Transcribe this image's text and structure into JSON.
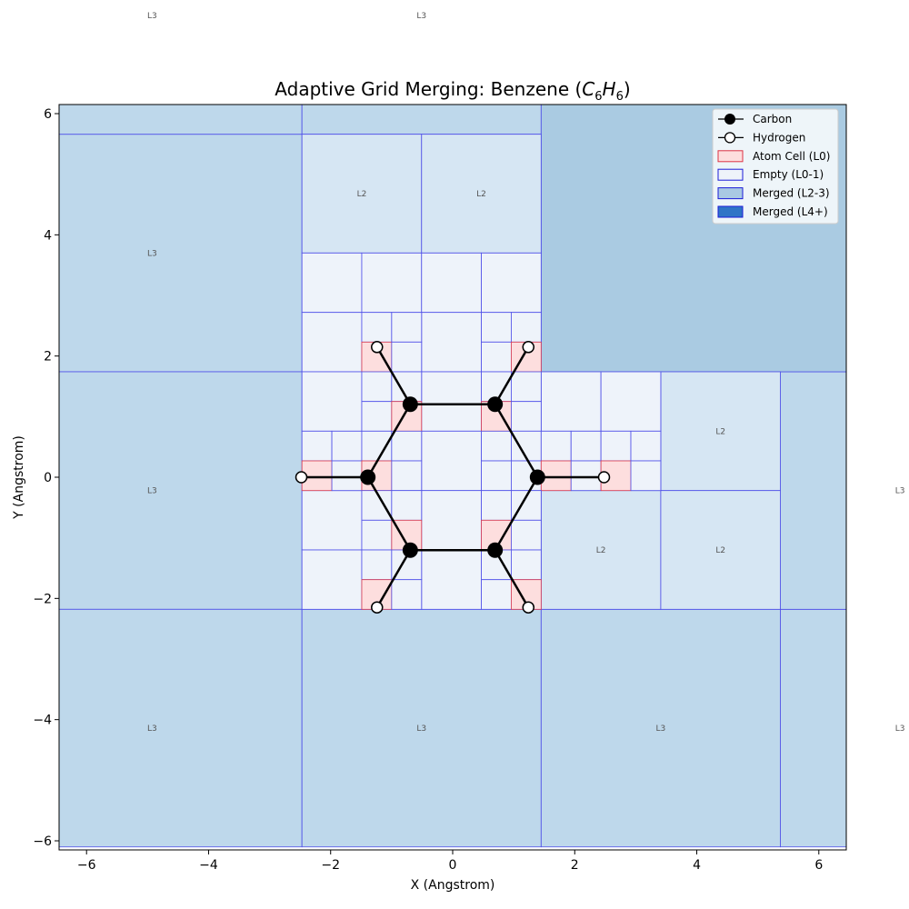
{
  "chart_data": {
    "type": "scatter",
    "title_main": "Adaptive Grid Merging: Benzene (",
    "title_formula": {
      "c": "C",
      "c_sub": "6",
      "h": "H",
      "h_sub": "6"
    },
    "title_close": ")",
    "xlabel": "X (Angstrom)",
    "ylabel": "Y (Angstrom)",
    "xlim": [
      -6.45,
      6.45
    ],
    "ylim": [
      -6.15,
      6.15
    ],
    "xticks": [
      -6,
      -4,
      -2,
      0,
      2,
      4,
      6
    ],
    "yticks": [
      -6,
      -4,
      -2,
      0,
      2,
      4,
      6
    ],
    "xtick_labels": [
      "−6",
      "−4",
      "−2",
      "0",
      "2",
      "4",
      "6"
    ],
    "ytick_labels": [
      "−6",
      "−4",
      "−2",
      "0",
      "2",
      "4",
      "6"
    ],
    "grid": false,
    "legend_position": "top-right",
    "colors": {
      "carbon": "#000000",
      "hydrogen": "#ffffff",
      "bond": "#000000",
      "atom_fill": "#fddede",
      "atom_edge": "#dd3344",
      "empty_fill": "#eef3fa",
      "merged_fill": "#bed8eb",
      "merged_l4_fill": "#aacbe2",
      "cell_edge": "#4a4ae8"
    },
    "legend": [
      {
        "label": "Carbon",
        "kind": "carbon"
      },
      {
        "label": "Hydrogen",
        "kind": "hydrogen"
      },
      {
        "label": "Atom Cell (L0)",
        "kind": "atom"
      },
      {
        "label": "Empty (L0-1)",
        "kind": "empty"
      },
      {
        "label": "Merged (L2-3)",
        "kind": "merged"
      },
      {
        "label": "Merged (L4+)",
        "kind": "merged_l4"
      }
    ],
    "carbon": [
      {
        "x": 1.39,
        "y": 0.0
      },
      {
        "x": 0.695,
        "y": 1.204
      },
      {
        "x": -0.695,
        "y": 1.204
      },
      {
        "x": -1.39,
        "y": 0.0
      },
      {
        "x": -0.695,
        "y": -1.204
      },
      {
        "x": 0.695,
        "y": -1.204
      }
    ],
    "hydrogen": [
      {
        "x": 2.48,
        "y": 0.0
      },
      {
        "x": 1.24,
        "y": 2.148
      },
      {
        "x": -1.24,
        "y": 2.148
      },
      {
        "x": -2.48,
        "y": 0.0
      },
      {
        "x": -1.24,
        "y": -2.148
      },
      {
        "x": 1.24,
        "y": -2.148
      }
    ],
    "cells": [
      {
        "x0": -7.38,
        "x1": -2.47,
        "y0": 1.74,
        "y1": 5.66,
        "kind": "merged",
        "label": "L3"
      },
      {
        "x0": -7.38,
        "x1": -2.47,
        "y0": -2.18,
        "y1": 1.74,
        "kind": "merged",
        "label": "L3"
      },
      {
        "x0": -7.38,
        "x1": -2.47,
        "y0": -6.1,
        "y1": -2.18,
        "kind": "merged",
        "label": "L3"
      },
      {
        "x0": -2.47,
        "x1": 1.45,
        "y0": -6.1,
        "y1": -2.18,
        "kind": "merged",
        "label": "L3"
      },
      {
        "x0": 1.45,
        "x1": 5.37,
        "y0": -6.1,
        "y1": -2.18,
        "kind": "merged",
        "label": "L3"
      },
      {
        "x0": 5.37,
        "x1": 9.29,
        "y0": -6.1,
        "y1": -2.18,
        "kind": "merged",
        "label": "L3"
      },
      {
        "x0": 5.37,
        "x1": 9.29,
        "y0": -2.18,
        "y1": 1.74,
        "kind": "merged",
        "label": "L3"
      },
      {
        "x0": -7.38,
        "x1": -2.47,
        "y0": 5.66,
        "y1": 9.58,
        "kind": "merged",
        "label": "L3"
      },
      {
        "x0": -2.47,
        "x1": 1.45,
        "y0": 5.66,
        "y1": 9.58,
        "kind": "merged",
        "label": "L3"
      },
      {
        "x0": 1.45,
        "x1": 9.29,
        "y0": 1.74,
        "y1": 9.58,
        "kind": "merged_l4",
        "label": ""
      },
      {
        "x0": -2.47,
        "x1": -0.51,
        "y0": 3.7,
        "y1": 5.66,
        "kind": "empty2",
        "label": "L2"
      },
      {
        "x0": -0.51,
        "x1": 1.45,
        "y0": 3.7,
        "y1": 5.66,
        "kind": "empty2",
        "label": "L2"
      },
      {
        "x0": 3.41,
        "x1": 5.37,
        "y0": -0.22,
        "y1": 1.74,
        "kind": "empty2",
        "label": "L2"
      },
      {
        "x0": 1.45,
        "x1": 3.41,
        "y0": -2.18,
        "y1": -0.22,
        "kind": "empty2",
        "label": "L2"
      },
      {
        "x0": 3.41,
        "x1": 5.37,
        "y0": -2.18,
        "y1": -0.22,
        "kind": "empty2",
        "label": "L2"
      },
      {
        "x0": -2.47,
        "x1": -1.49,
        "y0": 2.72,
        "y1": 3.7,
        "kind": "empty",
        "label": ""
      },
      {
        "x0": -1.49,
        "x1": -0.51,
        "y0": 2.72,
        "y1": 3.7,
        "kind": "empty",
        "label": ""
      },
      {
        "x0": -0.51,
        "x1": 0.47,
        "y0": 2.72,
        "y1": 3.7,
        "kind": "empty",
        "label": ""
      },
      {
        "x0": 0.47,
        "x1": 1.45,
        "y0": 2.72,
        "y1": 3.7,
        "kind": "empty",
        "label": ""
      },
      {
        "x0": -2.47,
        "x1": -1.49,
        "y0": 1.74,
        "y1": 2.72,
        "kind": "empty",
        "label": ""
      },
      {
        "x0": -0.51,
        "x1": 0.47,
        "y0": 1.74,
        "y1": 2.72,
        "kind": "empty",
        "label": ""
      },
      {
        "x0": -2.47,
        "x1": -1.49,
        "y0": 0.76,
        "y1": 1.74,
        "kind": "empty",
        "label": ""
      },
      {
        "x0": -0.51,
        "x1": 0.47,
        "y0": 0.76,
        "y1": 1.74,
        "kind": "empty",
        "label": ""
      },
      {
        "x0": -0.51,
        "x1": 0.47,
        "y0": -0.22,
        "y1": 0.76,
        "kind": "empty",
        "label": ""
      },
      {
        "x0": -0.51,
        "x1": 0.47,
        "y0": -1.2,
        "y1": -0.22,
        "kind": "empty",
        "label": ""
      },
      {
        "x0": -2.47,
        "x1": -1.49,
        "y0": -1.2,
        "y1": -0.22,
        "kind": "empty",
        "label": ""
      },
      {
        "x0": -2.47,
        "x1": -1.49,
        "y0": -2.18,
        "y1": -1.2,
        "kind": "empty",
        "label": ""
      },
      {
        "x0": -0.51,
        "x1": 0.47,
        "y0": -2.18,
        "y1": -1.2,
        "kind": "empty",
        "label": ""
      },
      {
        "x0": 1.45,
        "x1": 2.43,
        "y0": 0.76,
        "y1": 1.74,
        "kind": "empty",
        "label": ""
      },
      {
        "x0": 2.43,
        "x1": 3.41,
        "y0": 0.76,
        "y1": 1.74,
        "kind": "empty",
        "label": ""
      },
      {
        "x0": -1.49,
        "x1": -1.0,
        "y0": 2.23,
        "y1": 2.72,
        "kind": "empty",
        "label": ""
      },
      {
        "x0": -1.0,
        "x1": -0.51,
        "y0": 2.23,
        "y1": 2.72,
        "kind": "empty",
        "label": ""
      },
      {
        "x0": -1.49,
        "x1": -1.0,
        "y0": 1.74,
        "y1": 2.23,
        "kind": "atom",
        "label": ""
      },
      {
        "x0": -1.0,
        "x1": -0.51,
        "y0": 1.74,
        "y1": 2.23,
        "kind": "empty",
        "label": ""
      },
      {
        "x0": 0.47,
        "x1": 0.96,
        "y0": 2.23,
        "y1": 2.72,
        "kind": "empty",
        "label": ""
      },
      {
        "x0": 0.96,
        "x1": 1.45,
        "y0": 2.23,
        "y1": 2.72,
        "kind": "empty",
        "label": ""
      },
      {
        "x0": 0.47,
        "x1": 0.96,
        "y0": 1.74,
        "y1": 2.23,
        "kind": "empty",
        "label": ""
      },
      {
        "x0": 0.96,
        "x1": 1.45,
        "y0": 1.74,
        "y1": 2.23,
        "kind": "atom",
        "label": ""
      },
      {
        "x0": -1.49,
        "x1": -1.0,
        "y0": 1.25,
        "y1": 1.74,
        "kind": "empty",
        "label": ""
      },
      {
        "x0": -1.0,
        "x1": -0.51,
        "y0": 1.25,
        "y1": 1.74,
        "kind": "empty",
        "label": ""
      },
      {
        "x0": -1.49,
        "x1": -1.0,
        "y0": 0.76,
        "y1": 1.25,
        "kind": "empty",
        "label": ""
      },
      {
        "x0": -1.0,
        "x1": -0.51,
        "y0": 0.76,
        "y1": 1.25,
        "kind": "atom",
        "label": ""
      },
      {
        "x0": 0.47,
        "x1": 0.96,
        "y0": 1.25,
        "y1": 1.74,
        "kind": "empty",
        "label": ""
      },
      {
        "x0": 0.96,
        "x1": 1.45,
        "y0": 1.25,
        "y1": 1.74,
        "kind": "empty",
        "label": ""
      },
      {
        "x0": 0.47,
        "x1": 0.96,
        "y0": 0.76,
        "y1": 1.25,
        "kind": "atom",
        "label": ""
      },
      {
        "x0": 0.96,
        "x1": 1.45,
        "y0": 0.76,
        "y1": 1.25,
        "kind": "empty",
        "label": ""
      },
      {
        "x0": -2.47,
        "x1": -1.98,
        "y0": 0.27,
        "y1": 0.76,
        "kind": "empty",
        "label": ""
      },
      {
        "x0": -1.98,
        "x1": -1.49,
        "y0": 0.27,
        "y1": 0.76,
        "kind": "empty",
        "label": ""
      },
      {
        "x0": -2.47,
        "x1": -1.98,
        "y0": -0.22,
        "y1": 0.27,
        "kind": "atom",
        "label": ""
      },
      {
        "x0": -1.98,
        "x1": -1.49,
        "y0": -0.22,
        "y1": 0.27,
        "kind": "empty",
        "label": ""
      },
      {
        "x0": -1.49,
        "x1": -1.0,
        "y0": 0.27,
        "y1": 0.76,
        "kind": "empty",
        "label": ""
      },
      {
        "x0": -1.0,
        "x1": -0.51,
        "y0": 0.27,
        "y1": 0.76,
        "kind": "empty",
        "label": ""
      },
      {
        "x0": -1.49,
        "x1": -1.0,
        "y0": -0.22,
        "y1": 0.27,
        "kind": "atom",
        "label": ""
      },
      {
        "x0": -1.0,
        "x1": -0.51,
        "y0": -0.22,
        "y1": 0.27,
        "kind": "empty",
        "label": ""
      },
      {
        "x0": 0.47,
        "x1": 0.96,
        "y0": 0.27,
        "y1": 0.76,
        "kind": "empty",
        "label": ""
      },
      {
        "x0": 0.96,
        "x1": 1.45,
        "y0": 0.27,
        "y1": 0.76,
        "kind": "empty",
        "label": ""
      },
      {
        "x0": 0.47,
        "x1": 0.96,
        "y0": -0.22,
        "y1": 0.27,
        "kind": "empty",
        "label": ""
      },
      {
        "x0": 0.96,
        "x1": 1.45,
        "y0": -0.22,
        "y1": 0.27,
        "kind": "empty",
        "label": ""
      },
      {
        "x0": 1.45,
        "x1": 1.94,
        "y0": 0.27,
        "y1": 0.76,
        "kind": "empty",
        "label": ""
      },
      {
        "x0": 1.94,
        "x1": 2.43,
        "y0": 0.27,
        "y1": 0.76,
        "kind": "empty",
        "label": ""
      },
      {
        "x0": 1.45,
        "x1": 1.94,
        "y0": -0.22,
        "y1": 0.27,
        "kind": "atom",
        "label": ""
      },
      {
        "x0": 1.94,
        "x1": 2.43,
        "y0": -0.22,
        "y1": 0.27,
        "kind": "empty",
        "label": ""
      },
      {
        "x0": 2.43,
        "x1": 2.92,
        "y0": 0.27,
        "y1": 0.76,
        "kind": "empty",
        "label": ""
      },
      {
        "x0": 2.92,
        "x1": 3.41,
        "y0": 0.27,
        "y1": 0.76,
        "kind": "empty",
        "label": ""
      },
      {
        "x0": 2.43,
        "x1": 2.92,
        "y0": -0.22,
        "y1": 0.27,
        "kind": "atom",
        "label": ""
      },
      {
        "x0": 2.92,
        "x1": 3.41,
        "y0": -0.22,
        "y1": 0.27,
        "kind": "empty",
        "label": ""
      },
      {
        "x0": -1.49,
        "x1": -1.0,
        "y0": -0.71,
        "y1": -0.22,
        "kind": "empty",
        "label": ""
      },
      {
        "x0": -1.0,
        "x1": -0.51,
        "y0": -0.71,
        "y1": -0.22,
        "kind": "empty",
        "label": ""
      },
      {
        "x0": -1.49,
        "x1": -1.0,
        "y0": -1.2,
        "y1": -0.71,
        "kind": "empty",
        "label": ""
      },
      {
        "x0": -1.0,
        "x1": -0.51,
        "y0": -1.2,
        "y1": -0.71,
        "kind": "atom",
        "label": ""
      },
      {
        "x0": 0.47,
        "x1": 0.96,
        "y0": -0.71,
        "y1": -0.22,
        "kind": "empty",
        "label": ""
      },
      {
        "x0": 0.96,
        "x1": 1.45,
        "y0": -0.71,
        "y1": -0.22,
        "kind": "empty",
        "label": ""
      },
      {
        "x0": 0.47,
        "x1": 0.96,
        "y0": -1.2,
        "y1": -0.71,
        "kind": "atom",
        "label": ""
      },
      {
        "x0": 0.96,
        "x1": 1.45,
        "y0": -1.2,
        "y1": -0.71,
        "kind": "empty",
        "label": ""
      },
      {
        "x0": -1.49,
        "x1": -1.0,
        "y0": -1.69,
        "y1": -1.2,
        "kind": "empty",
        "label": ""
      },
      {
        "x0": -1.0,
        "x1": -0.51,
        "y0": -1.69,
        "y1": -1.2,
        "kind": "empty",
        "label": ""
      },
      {
        "x0": -1.49,
        "x1": -1.0,
        "y0": -2.18,
        "y1": -1.69,
        "kind": "atom",
        "label": ""
      },
      {
        "x0": -1.0,
        "x1": -0.51,
        "y0": -2.18,
        "y1": -1.69,
        "kind": "empty",
        "label": ""
      },
      {
        "x0": 0.47,
        "x1": 0.96,
        "y0": -1.69,
        "y1": -1.2,
        "kind": "empty",
        "label": ""
      },
      {
        "x0": 0.96,
        "x1": 1.45,
        "y0": -1.69,
        "y1": -1.2,
        "kind": "empty",
        "label": ""
      },
      {
        "x0": 0.47,
        "x1": 0.96,
        "y0": -2.18,
        "y1": -1.69,
        "kind": "empty",
        "label": ""
      },
      {
        "x0": 0.96,
        "x1": 1.45,
        "y0": -2.18,
        "y1": -1.69,
        "kind": "atom",
        "label": ""
      }
    ]
  }
}
